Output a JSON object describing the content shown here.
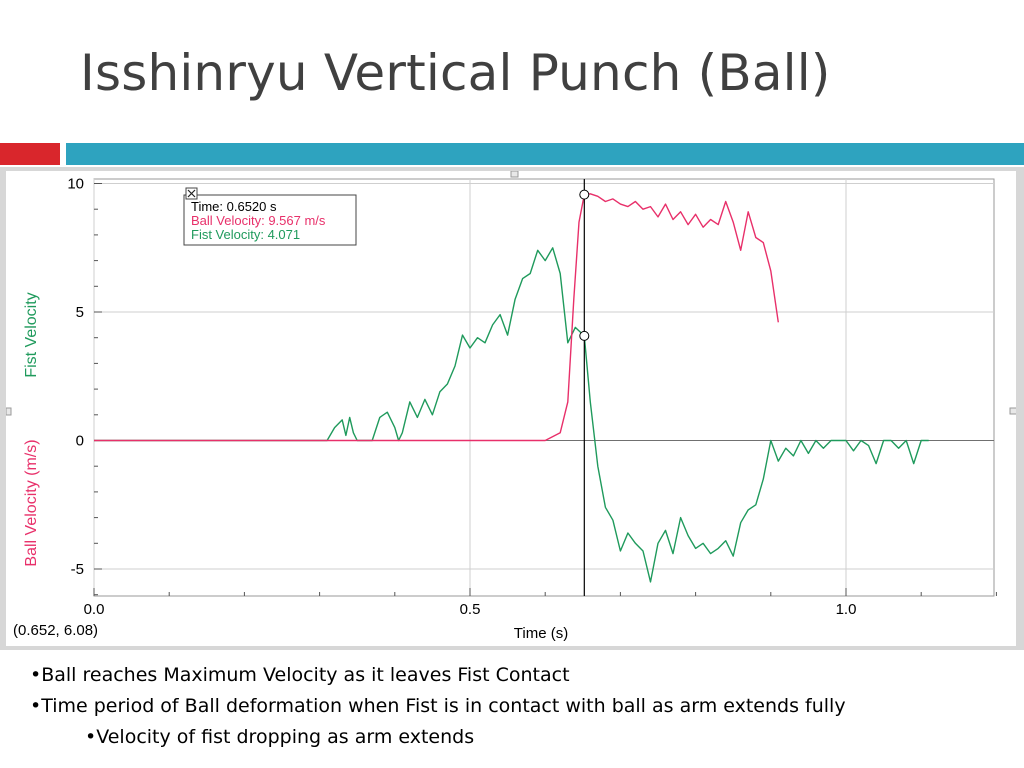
{
  "slide": {
    "title": "Isshinryu Vertical Punch (Ball)",
    "bullets": [
      "•Ball reaches Maximum Velocity as it leaves Fist Contact",
      "•Time period of Ball deformation when Fist is in contact with ball as arm extends fully"
    ],
    "sub_bullets": [
      "•Velocity of fist dropping as arm extends"
    ]
  },
  "colors": {
    "ball": "#e8306a",
    "fist": "#1f9a5c",
    "accent_red": "#d9262c",
    "accent_blue": "#2ea3bf"
  },
  "chart_data": {
    "type": "line",
    "xlabel": "Time (s)",
    "ylabel_ball": "Ball Velocity (m/s)",
    "ylabel_fist": "Fist Velocity",
    "xlim": [
      0,
      1.2
    ],
    "ylim": [
      -6,
      10
    ],
    "x_ticks": [
      "0.0",
      "0.5",
      "1.0"
    ],
    "y_ticks": [
      "10",
      "5",
      "0",
      "-5"
    ],
    "grid": true,
    "cursor": {
      "time": 0.652,
      "ball_velocity": 9.567,
      "fist_velocity": 4.071
    },
    "coordinate_readout": "(0.652, 6.08)",
    "legend": {
      "time": "Time: 0.6520 s",
      "ball": "Ball Velocity: 9.567 m/s",
      "fist": "Fist Velocity: 4.071"
    },
    "series": [
      {
        "name": "Ball Velocity",
        "x": [
          0,
          0.6,
          0.62,
          0.63,
          0.638,
          0.645,
          0.652,
          0.66,
          0.67,
          0.68,
          0.69,
          0.7,
          0.71,
          0.72,
          0.73,
          0.74,
          0.75,
          0.76,
          0.77,
          0.78,
          0.79,
          0.8,
          0.81,
          0.82,
          0.83,
          0.84,
          0.85,
          0.86,
          0.87,
          0.88,
          0.89,
          0.9,
          0.91
        ],
        "y": [
          0,
          0,
          0.3,
          1.5,
          5.5,
          8.5,
          9.57,
          9.6,
          9.5,
          9.3,
          9.4,
          9.2,
          9.1,
          9.3,
          9.0,
          9.1,
          8.7,
          9.2,
          8.6,
          8.9,
          8.4,
          8.8,
          8.3,
          8.6,
          8.4,
          9.3,
          8.5,
          7.4,
          8.9,
          7.9,
          7.7,
          6.6,
          4.6
        ]
      },
      {
        "name": "Fist Velocity",
        "x": [
          0,
          0.31,
          0.32,
          0.33,
          0.335,
          0.34,
          0.345,
          0.35,
          0.37,
          0.38,
          0.39,
          0.4,
          0.405,
          0.41,
          0.42,
          0.43,
          0.44,
          0.45,
          0.46,
          0.47,
          0.48,
          0.49,
          0.5,
          0.51,
          0.52,
          0.53,
          0.54,
          0.55,
          0.56,
          0.57,
          0.58,
          0.59,
          0.6,
          0.61,
          0.62,
          0.63,
          0.64,
          0.652,
          0.66,
          0.67,
          0.68,
          0.69,
          0.7,
          0.71,
          0.72,
          0.73,
          0.74,
          0.75,
          0.76,
          0.77,
          0.78,
          0.79,
          0.8,
          0.81,
          0.82,
          0.83,
          0.84,
          0.85,
          0.86,
          0.87,
          0.88,
          0.89,
          0.9,
          0.91,
          0.92,
          0.93,
          0.94,
          0.95,
          0.96,
          0.97,
          0.98,
          0.99,
          1.0,
          1.01,
          1.02,
          1.03,
          1.04,
          1.05,
          1.06,
          1.07,
          1.08,
          1.09,
          1.1,
          1.11
        ],
        "y": [
          0,
          0,
          0.5,
          0.8,
          0.2,
          0.9,
          0.3,
          0,
          0,
          0.9,
          1.1,
          0.5,
          0,
          0.3,
          1.5,
          0.9,
          1.6,
          1.0,
          1.9,
          2.2,
          2.9,
          4.1,
          3.6,
          4.0,
          3.8,
          4.5,
          4.9,
          4.1,
          5.5,
          6.3,
          6.5,
          7.4,
          7.0,
          7.5,
          6.5,
          3.8,
          4.4,
          4.07,
          1.5,
          -1.0,
          -2.6,
          -3.1,
          -4.3,
          -3.6,
          -4.0,
          -4.3,
          -5.5,
          -4.0,
          -3.5,
          -4.4,
          -3.0,
          -3.7,
          -4.2,
          -4.0,
          -4.4,
          -4.2,
          -3.9,
          -4.5,
          -3.2,
          -2.7,
          -2.5,
          -1.5,
          0,
          -0.8,
          -0.3,
          -0.6,
          0,
          -0.5,
          0,
          -0.3,
          0,
          0,
          0,
          -0.4,
          0,
          -0.2,
          -0.9,
          0,
          0,
          -0.3,
          0,
          -0.9,
          0,
          0
        ]
      }
    ]
  }
}
